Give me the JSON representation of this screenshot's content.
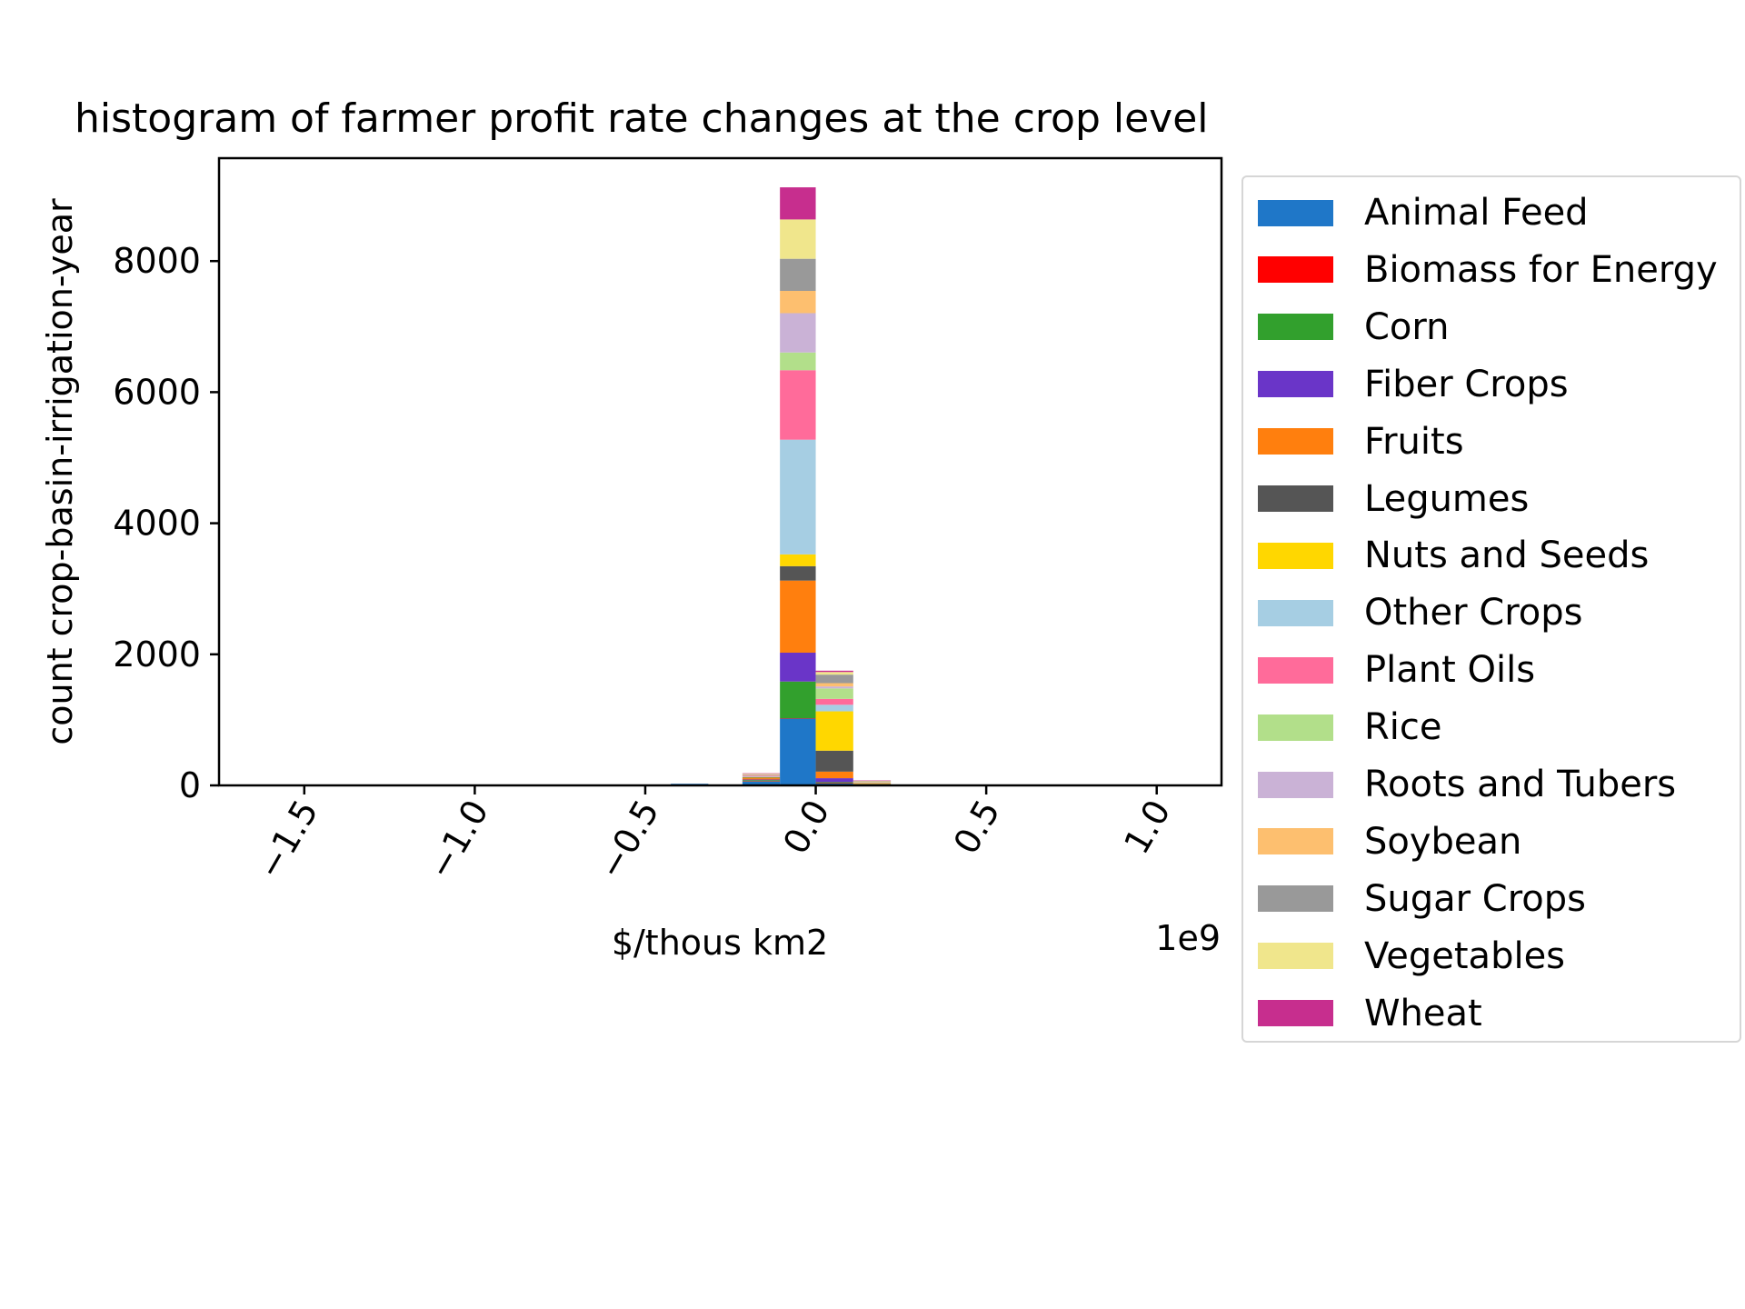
{
  "chart_data": {
    "type": "bar",
    "stacked": true,
    "title": "histogram of farmer profit rate changes at the crop level",
    "xlabel": "$/thous km2",
    "ylabel": "count crop-basin-irrigation-year",
    "x_offset_label": "1e9",
    "x_scale_multiplier": 1000000000,
    "xlim": [
      -1.75,
      1.19
    ],
    "ylim": [
      0,
      9570
    ],
    "x_ticks": [
      -1.5,
      -1.0,
      -0.5,
      0.0,
      0.5,
      1.0
    ],
    "x_tick_labels": [
      "−1.5",
      "−1.0",
      "−0.5",
      "0.0",
      "0.5",
      "1.0"
    ],
    "y_ticks": [
      0,
      2000,
      4000,
      6000,
      8000
    ],
    "y_tick_labels": [
      "0",
      "2000",
      "4000",
      "6000",
      "8000"
    ],
    "grid": false,
    "legend_position": "outside-right",
    "bin_edges": [
      -0.425,
      -0.315,
      -0.215,
      -0.105,
      0.0,
      0.11,
      0.22
    ],
    "series": [
      {
        "name": "Animal Feed",
        "color": "#1f77c8",
        "values": [
          25,
          10,
          60,
          1020,
          30,
          10
        ]
      },
      {
        "name": "Biomass for Energy",
        "color": "#ff0000",
        "values": [
          0,
          0,
          5,
          5,
          5,
          0
        ]
      },
      {
        "name": "Corn",
        "color": "#32a02d",
        "values": [
          0,
          0,
          15,
          560,
          15,
          5
        ]
      },
      {
        "name": "Fiber Crops",
        "color": "#6a35c8",
        "values": [
          0,
          0,
          10,
          440,
          60,
          0
        ]
      },
      {
        "name": "Fruits",
        "color": "#ff7f0e",
        "values": [
          0,
          0,
          20,
          1100,
          100,
          5
        ]
      },
      {
        "name": "Legumes",
        "color": "#555555",
        "values": [
          0,
          0,
          10,
          220,
          320,
          5
        ]
      },
      {
        "name": "Nuts and Seeds",
        "color": "#ffd700",
        "values": [
          0,
          0,
          5,
          180,
          600,
          10
        ]
      },
      {
        "name": "Other Crops",
        "color": "#a6cee3",
        "values": [
          0,
          0,
          10,
          1750,
          100,
          5
        ]
      },
      {
        "name": "Plant Oils",
        "color": "#ff6b9a",
        "values": [
          0,
          0,
          15,
          1060,
          90,
          5
        ]
      },
      {
        "name": "Rice",
        "color": "#b2df8a",
        "values": [
          0,
          0,
          5,
          270,
          160,
          5
        ]
      },
      {
        "name": "Roots and Tubers",
        "color": "#cab2d6",
        "values": [
          0,
          0,
          5,
          600,
          30,
          5
        ]
      },
      {
        "name": "Soybean",
        "color": "#fdbf6f",
        "values": [
          0,
          0,
          5,
          340,
          50,
          5
        ]
      },
      {
        "name": "Sugar Crops",
        "color": "#999999",
        "values": [
          0,
          0,
          5,
          490,
          130,
          5
        ]
      },
      {
        "name": "Vegetables",
        "color": "#f0e68c",
        "values": [
          0,
          0,
          10,
          600,
          40,
          5
        ]
      },
      {
        "name": "Wheat",
        "color": "#c72e8e",
        "values": [
          0,
          0,
          5,
          490,
          20,
          5
        ]
      }
    ]
  }
}
